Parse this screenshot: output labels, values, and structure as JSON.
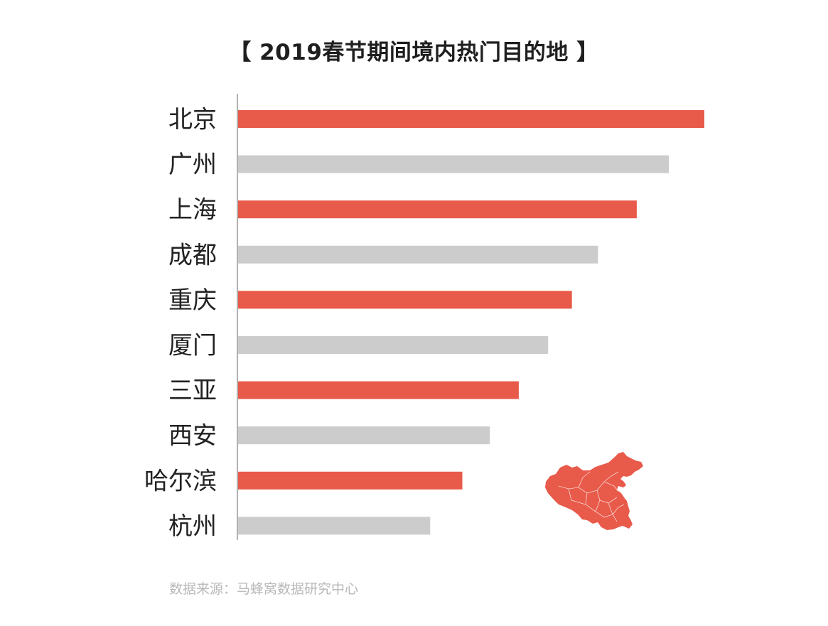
{
  "colors": {
    "highlight": "#e85a4a",
    "muted": "#cccccd",
    "axis": "#888888",
    "label": "#222222",
    "source": "#b8b8b8"
  },
  "chart_data": {
    "type": "bar",
    "orientation": "horizontal",
    "title": "【 2019春节期间境内热门目的地 】",
    "categories": [
      "北京",
      "广州",
      "上海",
      "成都",
      "重庆",
      "厦门",
      "三亚",
      "西安",
      "哈尔滨",
      "杭州"
    ],
    "values": [
      100,
      92.4,
      85.5,
      77.2,
      71.6,
      66.5,
      60.2,
      54.0,
      48.1,
      41.2
    ],
    "bar_colors": [
      "#e85a4a",
      "#cccccd",
      "#e85a4a",
      "#cccccd",
      "#e85a4a",
      "#cccccd",
      "#e85a4a",
      "#cccccd",
      "#e85a4a",
      "#cccccd"
    ],
    "xlim": [
      0,
      100
    ],
    "value_axis_labels": false,
    "grid": false,
    "legend": "none"
  },
  "source": {
    "text": "数据来源：马蜂窝数据研究中心"
  },
  "decoration": {
    "icon": "china-map-icon"
  }
}
